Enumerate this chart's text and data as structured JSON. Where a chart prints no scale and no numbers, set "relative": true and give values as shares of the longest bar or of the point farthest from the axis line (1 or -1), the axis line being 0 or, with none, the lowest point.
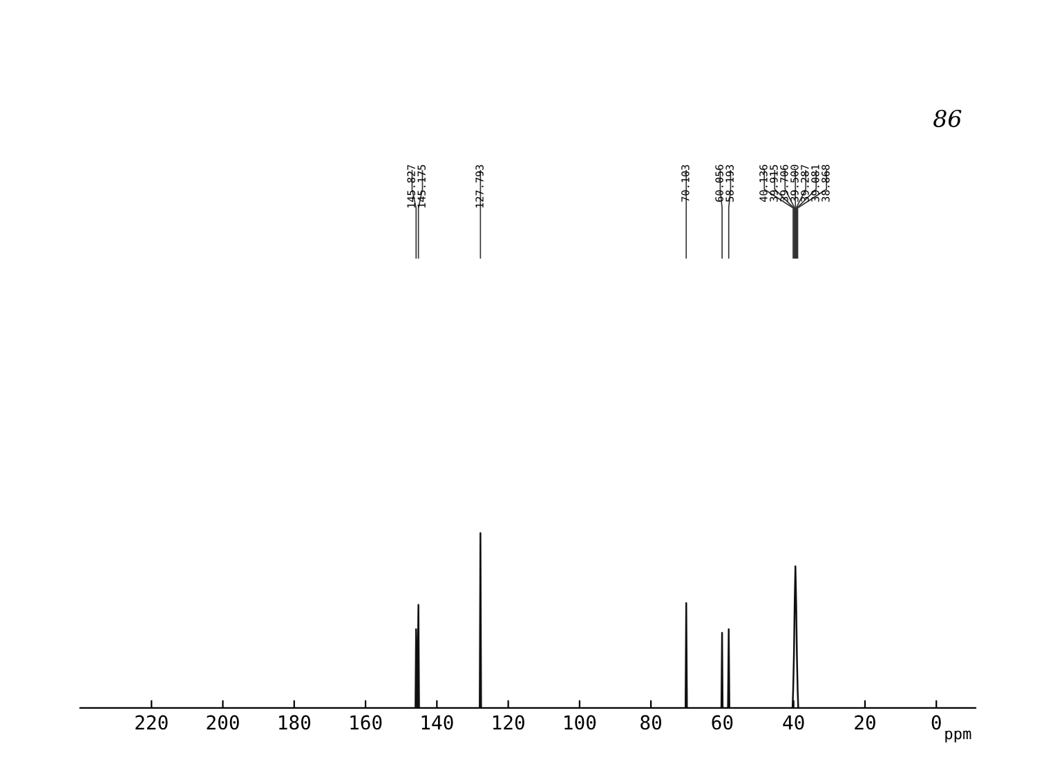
{
  "chart_data": {
    "type": "line",
    "relative": true,
    "xlabel": "ppm",
    "xlim": [
      240,
      -11
    ],
    "xticks": [
      220,
      200,
      180,
      160,
      140,
      120,
      100,
      80,
      60,
      40,
      20,
      0
    ],
    "series": [
      {
        "color": "#111111",
        "x": [
          240,
          146.0,
          145.827,
          145.5,
          145.175,
          145.0,
          128.0,
          127.793,
          127.6,
          70.3,
          70.103,
          69.9,
          60.25,
          60.056,
          59.9,
          58.4,
          58.193,
          58.0,
          40.3,
          40.136,
          39.915,
          39.706,
          39.5,
          39.287,
          39.081,
          38.868,
          38.7,
          -11
        ],
        "values": [
          0,
          0,
          0.45,
          0,
          0.59,
          0,
          0,
          1,
          0,
          0,
          0.6,
          0,
          0,
          0.43,
          0,
          0,
          0.45,
          0,
          0,
          0.1,
          0.3,
          0.6,
          0.81,
          0.6,
          0.3,
          0.1,
          0,
          0
        ]
      }
    ],
    "annotations": [
      {
        "text": "145.827",
        "x": 145.827
      },
      {
        "text": "145.175",
        "x": 145.175
      },
      {
        "text": "127.793",
        "x": 127.793
      },
      {
        "text": "70.103",
        "x": 70.103
      },
      {
        "text": "60.056",
        "x": 60.056
      },
      {
        "text": "58.193",
        "x": 58.193
      },
      {
        "text": "40.136",
        "x": 40.136
      },
      {
        "text": "39.915",
        "x": 39.915
      },
      {
        "text": "39.706",
        "x": 39.706
      },
      {
        "text": "39.500",
        "x": 39.5
      },
      {
        "text": "39.287",
        "x": 39.287
      },
      {
        "text": "39.081",
        "x": 39.081
      },
      {
        "text": "38.868",
        "x": 38.868
      },
      "86"
    ],
    "grid": false,
    "legend": false
  }
}
